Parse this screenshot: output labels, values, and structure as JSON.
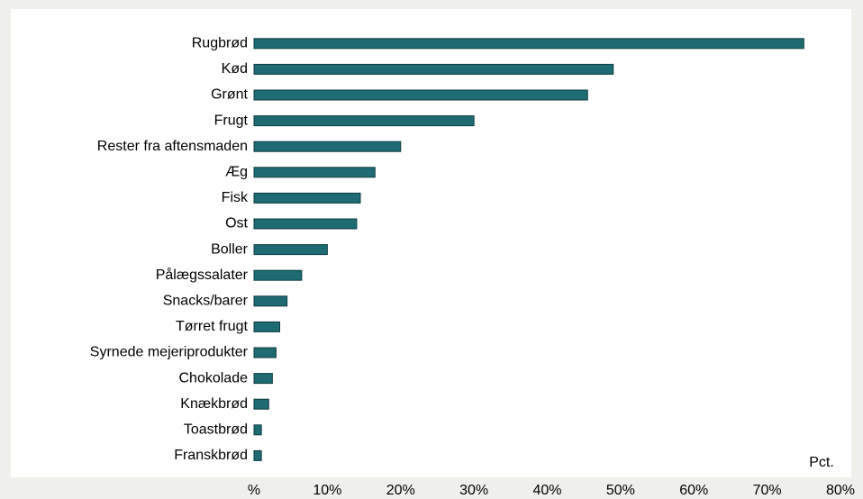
{
  "chart_data": {
    "type": "bar",
    "orientation": "horizontal",
    "categories": [
      "Rugbrød",
      "Kød",
      "Grønt",
      "Frugt",
      "Rester fra aftensmaden",
      "Æg",
      "Fisk",
      "Ost",
      "Boller",
      "Pålægssalater",
      "Snacks/barer",
      "Tørret frugt",
      "Syrnede mejeriprodukter",
      "Chokolade",
      "Knækbrød",
      "Toastbrød",
      "Franskbrød"
    ],
    "values": [
      75,
      49,
      45.5,
      30,
      20,
      16.5,
      14.5,
      14,
      10,
      6.5,
      4.5,
      3.5,
      3,
      2.5,
      2,
      1,
      1
    ],
    "color": "#1f6b73",
    "xlim": [
      0,
      80
    ],
    "xticks": [
      {
        "value": 0,
        "label": "%"
      },
      {
        "value": 10,
        "label": "10%"
      },
      {
        "value": 20,
        "label": "20%"
      },
      {
        "value": 30,
        "label": "30%"
      },
      {
        "value": 40,
        "label": "40%"
      },
      {
        "value": 50,
        "label": "50%"
      },
      {
        "value": 60,
        "label": "60%"
      },
      {
        "value": 70,
        "label": "70%"
      },
      {
        "value": 80,
        "label": "80%"
      }
    ],
    "axis_unit": "Pct.",
    "grid": false
  }
}
